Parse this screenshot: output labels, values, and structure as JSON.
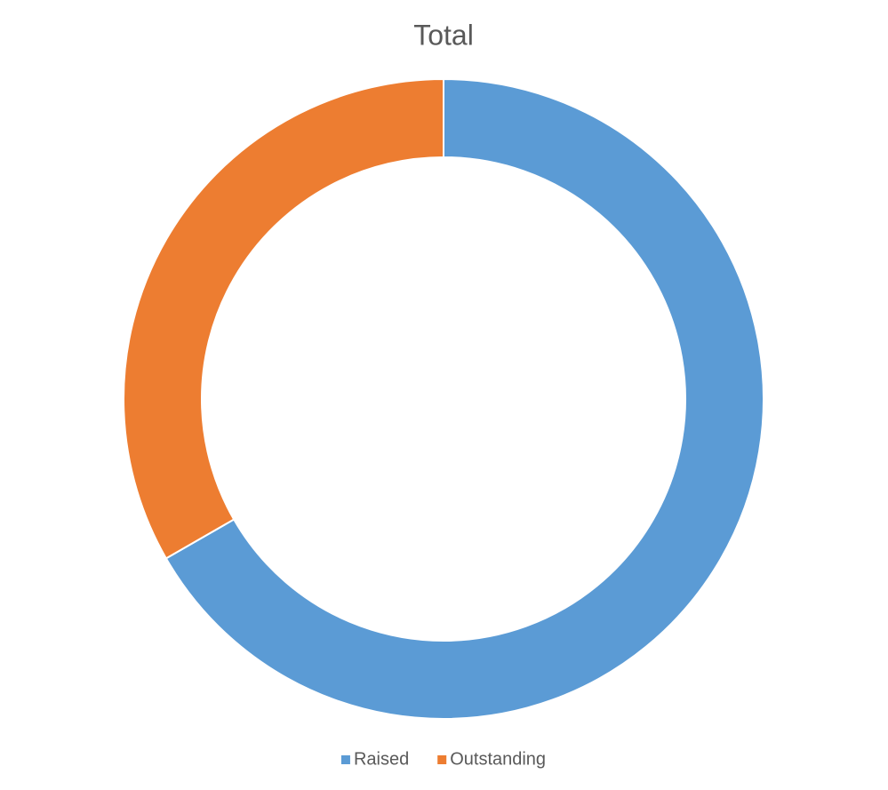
{
  "chart_data": {
    "type": "doughnut",
    "title": "Total",
    "categories": [
      "Raised",
      "Outstanding"
    ],
    "values": [
      66.7,
      33.3
    ],
    "colors": [
      "#5b9bd5",
      "#ed7d31"
    ],
    "legend": "bottom"
  }
}
